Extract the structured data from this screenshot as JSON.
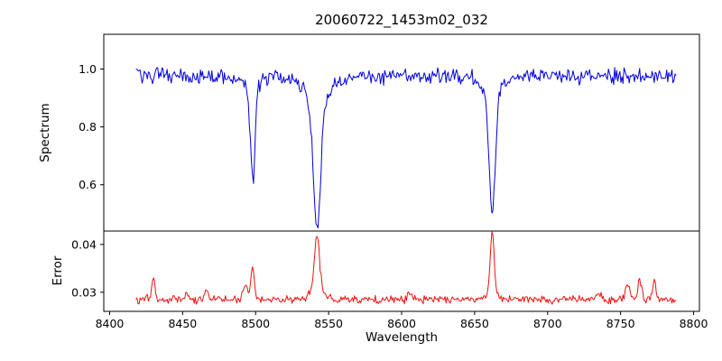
{
  "chart_data": [
    {
      "type": "line",
      "panel": "spectrum",
      "title": "20060722_1453m02_032",
      "ylabel": "Spectrum",
      "color": "#0000dd",
      "x_range": [
        8418,
        8788
      ],
      "xlim": [
        8396,
        8804
      ],
      "ylim": [
        0.44,
        1.12
      ],
      "ytick_values": [
        1.0,
        0.8,
        0.6
      ],
      "ytick_labels": [
        "1.0",
        "0.8",
        "0.6"
      ],
      "baseline": 0.975,
      "noise_amplitude": 0.018,
      "noise_seed": 42,
      "n_points": 520,
      "features": [
        {
          "center": 8498,
          "amplitude": -0.33,
          "sigma": 1.6
        },
        {
          "center": 8498,
          "amplitude": -0.04,
          "sigma": 4.5
        },
        {
          "center": 8542,
          "amplitude": -0.42,
          "sigma": 2.4
        },
        {
          "center": 8542,
          "amplitude": -0.11,
          "sigma": 7.5
        },
        {
          "center": 8662,
          "amplitude": -0.4,
          "sigma": 2.0
        },
        {
          "center": 8662,
          "amplitude": -0.08,
          "sigma": 6.0
        }
      ]
    },
    {
      "type": "line",
      "panel": "error",
      "xlabel": "Wavelength",
      "ylabel": "Error",
      "color": "#ee1111",
      "x_range": [
        8418,
        8788
      ],
      "xlim": [
        8396,
        8804
      ],
      "ylim": [
        0.026,
        0.0428
      ],
      "ytick_values": [
        0.04,
        0.03
      ],
      "ytick_labels": [
        "0.04",
        "0.03"
      ],
      "xtick_values": [
        8400,
        8450,
        8500,
        8550,
        8600,
        8650,
        8700,
        8750,
        8800
      ],
      "xtick_labels": [
        "8400",
        "8450",
        "8500",
        "8550",
        "8600",
        "8650",
        "8700",
        "8750",
        "8800"
      ],
      "baseline": 0.0285,
      "noise_amplitude": 0.0006,
      "noise_seed": 7,
      "n_points": 520,
      "features": [
        {
          "center": 8430,
          "amplitude": 0.0045,
          "sigma": 1.2
        },
        {
          "center": 8452,
          "amplitude": 0.0012,
          "sigma": 1.2
        },
        {
          "center": 8466,
          "amplitude": 0.0015,
          "sigma": 1.2
        },
        {
          "center": 8493,
          "amplitude": 0.003,
          "sigma": 1.6
        },
        {
          "center": 8498,
          "amplitude": 0.007,
          "sigma": 1.1
        },
        {
          "center": 8542,
          "amplitude": 0.0115,
          "sigma": 1.7
        },
        {
          "center": 8542,
          "amplitude": 0.002,
          "sigma": 5.0
        },
        {
          "center": 8605,
          "amplitude": 0.001,
          "sigma": 1.3
        },
        {
          "center": 8662,
          "amplitude": 0.0125,
          "sigma": 1.3
        },
        {
          "center": 8662,
          "amplitude": 0.0015,
          "sigma": 4.0
        },
        {
          "center": 8735,
          "amplitude": 0.0012,
          "sigma": 1.5
        },
        {
          "center": 8755,
          "amplitude": 0.0028,
          "sigma": 1.5
        },
        {
          "center": 8763,
          "amplitude": 0.004,
          "sigma": 1.2
        },
        {
          "center": 8773,
          "amplitude": 0.0042,
          "sigma": 1.2
        }
      ]
    }
  ]
}
